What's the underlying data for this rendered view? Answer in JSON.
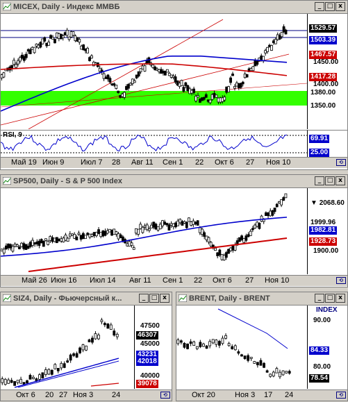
{
  "windows": {
    "micex": {
      "title": "MICEX, Daily - Индекс ММВБ",
      "price_tags": [
        {
          "text": "1529.57",
          "bg": "#000000",
          "fg": "#ffffff"
        },
        {
          "text": "1503.39",
          "bg": "#0000cc",
          "fg": "#ffffff"
        },
        {
          "text": "1467.57",
          "bg": "#cc0000",
          "fg": "#ffffff"
        },
        {
          "text": "1417.28",
          "bg": "#cc0000",
          "fg": "#ffffff"
        },
        {
          "text": "1380.00",
          "bg": "#ffffff",
          "fg": "#000000"
        },
        {
          "text": "1350.00",
          "bg": "#ffffff",
          "fg": "#000000"
        }
      ],
      "y_labels": [
        "1450.00",
        "1400.00"
      ],
      "rsi_label": "RSI, 9",
      "rsi_tags": [
        {
          "text": "69.91",
          "bg": "#0000cc",
          "fg": "#ffffff"
        },
        {
          "text": "25.00",
          "bg": "#0000cc",
          "fg": "#ffffff"
        }
      ],
      "x_labels": [
        "Май 19",
        "Июн 9",
        "Июл 7",
        "28",
        "Авг 11",
        "Сен 1",
        "22",
        "Окт 6",
        "27",
        "Ноя 10"
      ]
    },
    "sp500": {
      "title": "SP500, Daily - S & P 500 Index",
      "price_tags": [
        {
          "text": "2068.60",
          "bg": "#ffffff",
          "fg": "#000000",
          "marker": "▼"
        },
        {
          "text": "1999.96",
          "bg": "#ffffff",
          "fg": "#000000"
        },
        {
          "text": "1982.81",
          "bg": "#0000cc",
          "fg": "#ffffff"
        },
        {
          "text": "1928.73",
          "bg": "#cc0000",
          "fg": "#ffffff"
        }
      ],
      "y_labels": [
        "1900.00"
      ],
      "x_labels": [
        "Май 26",
        "Июн 16",
        "Июл 14",
        "Авг 11",
        "Сен 1",
        "22",
        "Окт 6",
        "27",
        "Ноя 10"
      ]
    },
    "siz4": {
      "title": "SIZ4, Daily - Фьючерсный к...",
      "price_tags": [
        {
          "text": "46307",
          "bg": "#000000",
          "fg": "#ffffff"
        },
        {
          "text": "43231",
          "bg": "#0000cc",
          "fg": "#ffffff"
        },
        {
          "text": "42018",
          "bg": "#0000cc",
          "fg": "#ffffff"
        },
        {
          "text": "39078",
          "bg": "#cc0000",
          "fg": "#ffffff"
        }
      ],
      "y_labels": [
        "47500",
        "45000",
        "40000"
      ],
      "x_labels": [
        "Окт 6",
        "20",
        "27",
        "Ноя 3",
        "24"
      ]
    },
    "brent": {
      "title": "BRENT, Daily - BRENT",
      "index_label": "INDEX",
      "price_tags": [
        {
          "text": "84.33",
          "bg": "#0000cc",
          "fg": "#ffffff"
        },
        {
          "text": "78.54",
          "bg": "#000000",
          "fg": "#ffffff"
        }
      ],
      "y_labels": [
        "90.00",
        "80.00"
      ],
      "x_labels": [
        "Окт 20",
        "Ноя 3",
        "17",
        "24"
      ]
    }
  },
  "window_buttons": [
    "_",
    "□",
    "x"
  ],
  "scroll_button": "⟲",
  "colors": {
    "green_zone": "#33ff00",
    "ma_blue": "#0000cc",
    "ma_red": "#cc0000",
    "candle_up": "#ffffff",
    "candle_down": "#000000"
  }
}
